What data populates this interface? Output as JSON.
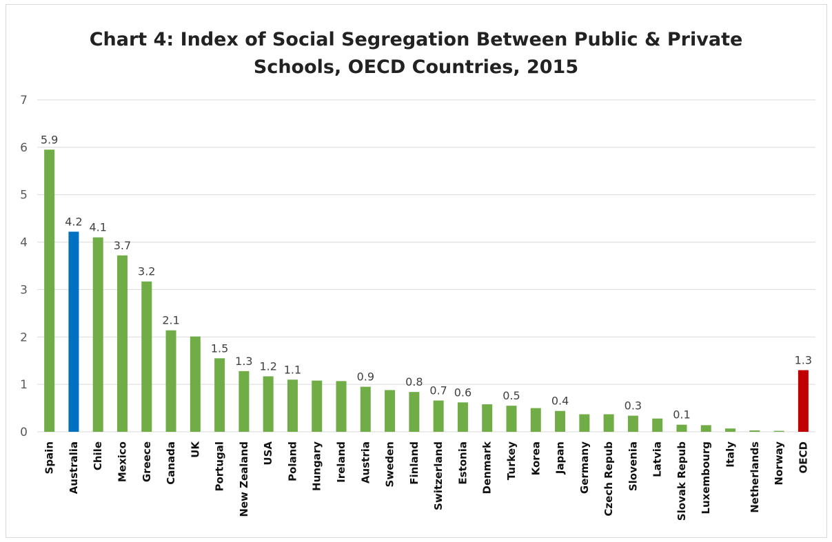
{
  "chart_data": {
    "type": "bar",
    "title": "Chart 4: Index of Social Segregation Between Public & Private\nSchools, OECD Countries, 2015",
    "xlabel": "",
    "ylabel": "",
    "ylim": [
      0,
      7
    ],
    "yticks": [
      "0",
      "1",
      "2",
      "3",
      "4",
      "5",
      "6",
      "7"
    ],
    "grid": true,
    "categories": [
      "Spain",
      "Australia",
      "Chile",
      "Mexico",
      "Greece",
      "Canada",
      "UK",
      "Portugal",
      "New Zealand",
      "USA",
      "Poland",
      "Hungary",
      "Ireland",
      "Austria",
      "Sweden",
      "Finland",
      "Switzerland",
      "Estonia",
      "Denmark",
      "Turkey",
      "Korea",
      "Japan",
      "Germany",
      "Czech Repub",
      "Slovenia",
      "Latvia",
      "Slovak Repub",
      "Luxembourg",
      "Italy",
      "Netherlands",
      "Norway",
      "OECD"
    ],
    "values": [
      5.95,
      4.22,
      4.1,
      3.72,
      3.17,
      2.14,
      2.01,
      1.55,
      1.28,
      1.17,
      1.1,
      1.08,
      1.07,
      0.95,
      0.88,
      0.84,
      0.66,
      0.62,
      0.58,
      0.55,
      0.5,
      0.44,
      0.37,
      0.37,
      0.34,
      0.28,
      0.15,
      0.14,
      0.07,
      0.03,
      0.02,
      1.3
    ],
    "data_labels": [
      "5.9",
      "4.2",
      "4.1",
      "3.7",
      "3.2",
      "2.1",
      "",
      "1.5",
      "1.3",
      "1.2",
      "1.1",
      "",
      "",
      "0.9",
      "",
      "0.8",
      "0.7",
      "0.6",
      "",
      "0.5",
      "",
      "0.4",
      "",
      "",
      "0.3",
      "",
      "0.1",
      "",
      "",
      "",
      "",
      "1.3"
    ],
    "colors": {
      "default": "#70ad47",
      "Australia": "#0070c0",
      "OECD": "#c00000",
      "grid": "#d9d9d9"
    }
  }
}
